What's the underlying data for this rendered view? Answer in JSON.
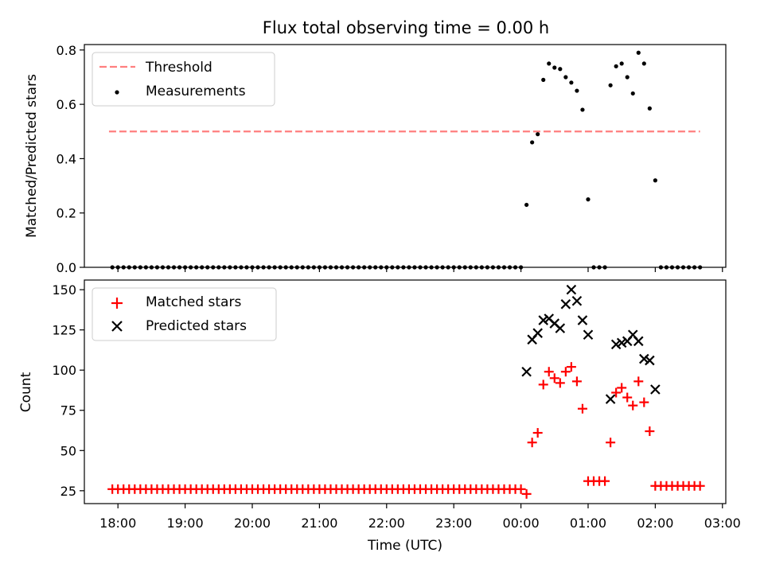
{
  "chart_data": [
    {
      "type": "scatter",
      "title": "Flux total observing time = 0.00 h",
      "ylabel": "Matched/Predicted stars",
      "ylim": [
        0,
        0.82
      ],
      "yticks": [
        0.0,
        0.2,
        0.4,
        0.6,
        0.8
      ],
      "ytick_labels": [
        "0.0",
        "0.2",
        "0.4",
        "0.6",
        "0.8"
      ],
      "legend_location": "top-left",
      "threshold": {
        "name": "Threshold",
        "value": 0.5,
        "x_start": "17:52",
        "x_end": "02:40",
        "color": "#ff7f7f"
      },
      "series": [
        {
          "name": "Measurements",
          "marker": "dot",
          "color": "#000000",
          "points": [
            [
              "17:55",
              0
            ],
            [
              "18:00",
              0
            ],
            [
              "18:05",
              0
            ],
            [
              "18:10",
              0
            ],
            [
              "18:15",
              0
            ],
            [
              "18:20",
              0
            ],
            [
              "18:25",
              0
            ],
            [
              "18:30",
              0
            ],
            [
              "18:35",
              0
            ],
            [
              "18:40",
              0
            ],
            [
              "18:45",
              0
            ],
            [
              "18:50",
              0
            ],
            [
              "18:55",
              0
            ],
            [
              "19:00",
              0
            ],
            [
              "19:05",
              0
            ],
            [
              "19:10",
              0
            ],
            [
              "19:15",
              0
            ],
            [
              "19:20",
              0
            ],
            [
              "19:25",
              0
            ],
            [
              "19:30",
              0
            ],
            [
              "19:35",
              0
            ],
            [
              "19:40",
              0
            ],
            [
              "19:45",
              0
            ],
            [
              "19:50",
              0
            ],
            [
              "19:55",
              0
            ],
            [
              "20:00",
              0
            ],
            [
              "20:05",
              0
            ],
            [
              "20:10",
              0
            ],
            [
              "20:15",
              0
            ],
            [
              "20:20",
              0
            ],
            [
              "20:25",
              0
            ],
            [
              "20:30",
              0
            ],
            [
              "20:35",
              0
            ],
            [
              "20:40",
              0
            ],
            [
              "20:45",
              0
            ],
            [
              "20:50",
              0
            ],
            [
              "20:55",
              0
            ],
            [
              "21:00",
              0
            ],
            [
              "21:05",
              0
            ],
            [
              "21:10",
              0
            ],
            [
              "21:15",
              0
            ],
            [
              "21:20",
              0
            ],
            [
              "21:25",
              0
            ],
            [
              "21:30",
              0
            ],
            [
              "21:35",
              0
            ],
            [
              "21:40",
              0
            ],
            [
              "21:45",
              0
            ],
            [
              "21:50",
              0
            ],
            [
              "21:55",
              0
            ],
            [
              "22:00",
              0
            ],
            [
              "22:05",
              0
            ],
            [
              "22:10",
              0
            ],
            [
              "22:15",
              0
            ],
            [
              "22:20",
              0
            ],
            [
              "22:25",
              0
            ],
            [
              "22:30",
              0
            ],
            [
              "22:35",
              0
            ],
            [
              "22:40",
              0
            ],
            [
              "22:45",
              0
            ],
            [
              "22:50",
              0
            ],
            [
              "22:55",
              0
            ],
            [
              "23:00",
              0
            ],
            [
              "23:05",
              0
            ],
            [
              "23:10",
              0
            ],
            [
              "23:15",
              0
            ],
            [
              "23:20",
              0
            ],
            [
              "23:25",
              0
            ],
            [
              "23:30",
              0
            ],
            [
              "23:35",
              0
            ],
            [
              "23:40",
              0
            ],
            [
              "23:45",
              0
            ],
            [
              "23:50",
              0
            ],
            [
              "23:55",
              0
            ],
            [
              "00:00",
              0
            ],
            [
              "00:05",
              0.23
            ],
            [
              "00:10",
              0.46
            ],
            [
              "00:15",
              0.49
            ],
            [
              "00:20",
              0.69
            ],
            [
              "00:25",
              0.75
            ],
            [
              "00:30",
              0.735
            ],
            [
              "00:35",
              0.73
            ],
            [
              "00:40",
              0.7
            ],
            [
              "00:45",
              0.68
            ],
            [
              "00:50",
              0.65
            ],
            [
              "00:55",
              0.58
            ],
            [
              "01:00",
              0.25
            ],
            [
              "01:05",
              0
            ],
            [
              "01:10",
              0
            ],
            [
              "01:15",
              0
            ],
            [
              "01:20",
              0.67
            ],
            [
              "01:25",
              0.74
            ],
            [
              "01:30",
              0.75
            ],
            [
              "01:35",
              0.7
            ],
            [
              "01:40",
              0.64
            ],
            [
              "01:45",
              0.79
            ],
            [
              "01:50",
              0.75
            ],
            [
              "01:55",
              0.585
            ],
            [
              "02:00",
              0.32
            ],
            [
              "02:05",
              0
            ],
            [
              "02:10",
              0
            ],
            [
              "02:15",
              0
            ],
            [
              "02:20",
              0
            ],
            [
              "02:25",
              0
            ],
            [
              "02:30",
              0
            ],
            [
              "02:35",
              0
            ],
            [
              "02:40",
              0
            ]
          ]
        }
      ]
    },
    {
      "type": "scatter",
      "xlabel": "Time (UTC)",
      "ylabel": "Count",
      "ylim": [
        17,
        156
      ],
      "yticks": [
        25,
        50,
        75,
        100,
        125,
        150
      ],
      "ytick_labels": [
        "25",
        "50",
        "75",
        "100",
        "125",
        "150"
      ],
      "xticks": [
        "18:00",
        "19:00",
        "20:00",
        "21:00",
        "22:00",
        "23:00",
        "00:00",
        "01:00",
        "02:00",
        "03:00"
      ],
      "xlim": [
        "17:30",
        "03:03"
      ],
      "legend_location": "top-left",
      "series": [
        {
          "name": "Matched stars",
          "marker": "plus",
          "color": "#ff0000",
          "points": [
            [
              "17:55",
              26
            ],
            [
              "18:00",
              26
            ],
            [
              "18:05",
              26
            ],
            [
              "18:10",
              26
            ],
            [
              "18:15",
              26
            ],
            [
              "18:20",
              26
            ],
            [
              "18:25",
              26
            ],
            [
              "18:30",
              26
            ],
            [
              "18:35",
              26
            ],
            [
              "18:40",
              26
            ],
            [
              "18:45",
              26
            ],
            [
              "18:50",
              26
            ],
            [
              "18:55",
              26
            ],
            [
              "19:00",
              26
            ],
            [
              "19:05",
              26
            ],
            [
              "19:10",
              26
            ],
            [
              "19:15",
              26
            ],
            [
              "19:20",
              26
            ],
            [
              "19:25",
              26
            ],
            [
              "19:30",
              26
            ],
            [
              "19:35",
              26
            ],
            [
              "19:40",
              26
            ],
            [
              "19:45",
              26
            ],
            [
              "19:50",
              26
            ],
            [
              "19:55",
              26
            ],
            [
              "20:00",
              26
            ],
            [
              "20:05",
              26
            ],
            [
              "20:10",
              26
            ],
            [
              "20:15",
              26
            ],
            [
              "20:20",
              26
            ],
            [
              "20:25",
              26
            ],
            [
              "20:30",
              26
            ],
            [
              "20:35",
              26
            ],
            [
              "20:40",
              26
            ],
            [
              "20:45",
              26
            ],
            [
              "20:50",
              26
            ],
            [
              "20:55",
              26
            ],
            [
              "21:00",
              26
            ],
            [
              "21:05",
              26
            ],
            [
              "21:10",
              26
            ],
            [
              "21:15",
              26
            ],
            [
              "21:20",
              26
            ],
            [
              "21:25",
              26
            ],
            [
              "21:30",
              26
            ],
            [
              "21:35",
              26
            ],
            [
              "21:40",
              26
            ],
            [
              "21:45",
              26
            ],
            [
              "21:50",
              26
            ],
            [
              "21:55",
              26
            ],
            [
              "22:00",
              26
            ],
            [
              "22:05",
              26
            ],
            [
              "22:10",
              26
            ],
            [
              "22:15",
              26
            ],
            [
              "22:20",
              26
            ],
            [
              "22:25",
              26
            ],
            [
              "22:30",
              26
            ],
            [
              "22:35",
              26
            ],
            [
              "22:40",
              26
            ],
            [
              "22:45",
              26
            ],
            [
              "22:50",
              26
            ],
            [
              "22:55",
              26
            ],
            [
              "23:00",
              26
            ],
            [
              "23:05",
              26
            ],
            [
              "23:10",
              26
            ],
            [
              "23:15",
              26
            ],
            [
              "23:20",
              26
            ],
            [
              "23:25",
              26
            ],
            [
              "23:30",
              26
            ],
            [
              "23:35",
              26
            ],
            [
              "23:40",
              26
            ],
            [
              "23:45",
              26
            ],
            [
              "23:50",
              26
            ],
            [
              "23:55",
              26
            ],
            [
              "00:00",
              26
            ],
            [
              "00:05",
              23
            ],
            [
              "00:10",
              55
            ],
            [
              "00:15",
              61
            ],
            [
              "00:20",
              91
            ],
            [
              "00:25",
              99
            ],
            [
              "00:30",
              95
            ],
            [
              "00:35",
              92
            ],
            [
              "00:40",
              99
            ],
            [
              "00:45",
              102
            ],
            [
              "00:50",
              93
            ],
            [
              "00:55",
              76
            ],
            [
              "01:00",
              31
            ],
            [
              "01:05",
              31
            ],
            [
              "01:10",
              31
            ],
            [
              "01:15",
              31
            ],
            [
              "01:20",
              55
            ],
            [
              "01:25",
              86
            ],
            [
              "01:30",
              89
            ],
            [
              "01:35",
              83
            ],
            [
              "01:40",
              78
            ],
            [
              "01:45",
              93
            ],
            [
              "01:50",
              80
            ],
            [
              "01:55",
              62
            ],
            [
              "02:00",
              28
            ],
            [
              "02:05",
              28
            ],
            [
              "02:10",
              28
            ],
            [
              "02:15",
              28
            ],
            [
              "02:20",
              28
            ],
            [
              "02:25",
              28
            ],
            [
              "02:30",
              28
            ],
            [
              "02:35",
              28
            ],
            [
              "02:40",
              28
            ]
          ]
        },
        {
          "name": "Predicted stars",
          "marker": "x",
          "color": "#000000",
          "points": [
            [
              "00:05",
              99
            ],
            [
              "00:10",
              119
            ],
            [
              "00:15",
              123
            ],
            [
              "00:20",
              131
            ],
            [
              "00:25",
              132
            ],
            [
              "00:30",
              129
            ],
            [
              "00:35",
              126
            ],
            [
              "00:40",
              141
            ],
            [
              "00:45",
              150
            ],
            [
              "00:50",
              143
            ],
            [
              "00:55",
              131
            ],
            [
              "01:00",
              122
            ],
            [
              "01:20",
              82
            ],
            [
              "01:25",
              116
            ],
            [
              "01:30",
              117
            ],
            [
              "01:35",
              118
            ],
            [
              "01:40",
              122
            ],
            [
              "01:45",
              118
            ],
            [
              "01:50",
              107
            ],
            [
              "01:55",
              106
            ],
            [
              "02:00",
              88
            ]
          ]
        }
      ]
    }
  ]
}
